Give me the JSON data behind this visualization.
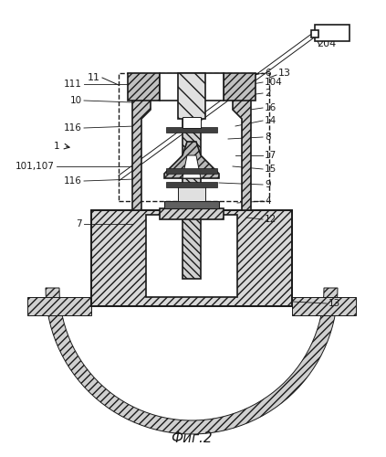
{
  "title": "Фиг.2",
  "bg_color": "#ffffff",
  "line_color": "#1a1a1a",
  "hatch_color": "#1a1a1a",
  "label_204": "204",
  "label_11": "11",
  "label_13_top": "13",
  "label_111": "111",
  "label_6": "6",
  "label_104": "104",
  "label_2": "2",
  "label_10": "10",
  "label_16": "16",
  "label_14": "14",
  "label_116a": "116",
  "label_8": "8",
  "label_1": "1",
  "label_101107": "101,107",
  "label_17": "17",
  "label_116b": "116",
  "label_15": "15",
  "label_7": "7",
  "label_9": "9",
  "label_4": "4",
  "label_12": "12",
  "label_13_bot": "13",
  "fig_width": 4.23,
  "fig_height": 5.0,
  "dpi": 100
}
